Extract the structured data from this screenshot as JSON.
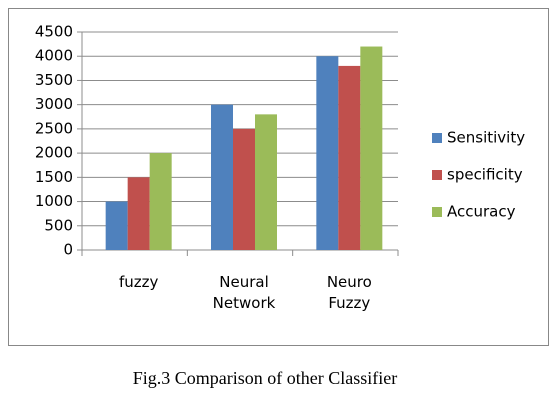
{
  "chart_data": {
    "type": "bar",
    "categories": [
      "fuzzy",
      "Neural Network",
      "Neuro Fuzzy"
    ],
    "series": [
      {
        "name": "Sensitivity",
        "color": "#4f81bd",
        "values": [
          1000,
          3000,
          4000
        ]
      },
      {
        "name": "specificity",
        "color": "#c0504d",
        "values": [
          1500,
          2500,
          3800
        ]
      },
      {
        "name": "Accuracy",
        "color": "#9bbb59",
        "values": [
          2000,
          2800,
          4200
        ]
      }
    ],
    "ylim": [
      0,
      4500
    ],
    "yticks": [
      0,
      500,
      1000,
      1500,
      2000,
      2500,
      3000,
      3500,
      4000,
      4500
    ],
    "grid": true,
    "legend": "right",
    "caption": "Fig.3 Comparison of other Classifier"
  }
}
